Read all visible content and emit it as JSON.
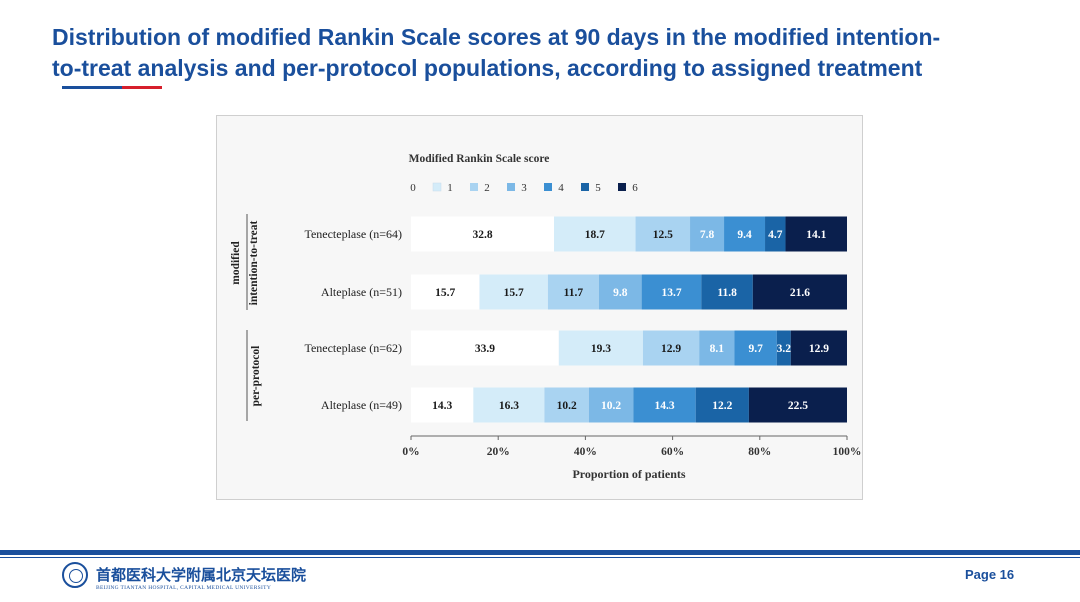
{
  "slide": {
    "title_line1": "Distribution of modified Rankin Scale scores at 90 days in the modified intention-",
    "title_line2": "to-treat analysis and per-protocol populations, according to assigned treatment",
    "page": "Page 16"
  },
  "footer": {
    "hospital_cn": "首都医科大学附属北京天坛医院",
    "hospital_en": "BEIJING TIANTAN HOSPITAL, CAPITAL MEDICAL UNIVERSITY"
  },
  "chart_data": {
    "type": "bar",
    "orientation": "horizontal",
    "stacked": true,
    "title": "Modified Rankin Scale score",
    "xlabel": "Proportion of patients",
    "xlim": [
      0,
      100
    ],
    "xticks": [
      "0%",
      "20%",
      "40%",
      "60%",
      "80%",
      "100%"
    ],
    "legend_position": "top",
    "colors": [
      "#ffffff",
      "#d4ecf9",
      "#a9d3f1",
      "#7cb8e6",
      "#3b8fd2",
      "#1a64a6",
      "#0a1f4d"
    ],
    "label_colors": [
      "#1a1a1a",
      "#1a1a1a",
      "#1a1a1a",
      "#ffffff",
      "#ffffff",
      "#ffffff",
      "#ffffff"
    ],
    "series": [
      {
        "name": "0",
        "values": [
          32.8,
          15.7,
          33.9,
          14.3
        ]
      },
      {
        "name": "1",
        "values": [
          18.7,
          15.7,
          19.3,
          16.3
        ]
      },
      {
        "name": "2",
        "values": [
          12.5,
          11.7,
          12.9,
          10.2
        ]
      },
      {
        "name": "3",
        "values": [
          7.8,
          9.8,
          8.1,
          10.2
        ]
      },
      {
        "name": "4",
        "values": [
          9.4,
          13.7,
          9.7,
          14.3
        ]
      },
      {
        "name": "5",
        "values": [
          4.7,
          11.8,
          3.2,
          12.2
        ]
      },
      {
        "name": "6",
        "values": [
          14.1,
          21.6,
          12.9,
          22.5
        ]
      }
    ],
    "rows": [
      {
        "label": "Tenecteplase (n=64)",
        "group": 0
      },
      {
        "label": "Alteplase  (n=51)",
        "group": 0
      },
      {
        "label": "Tenecteplase (n=62)",
        "group": 1
      },
      {
        "label": "Alteplase  (n=49)",
        "group": 1
      }
    ],
    "groups": [
      {
        "label_lines": [
          "modified",
          "intention-to-treat"
        ]
      },
      {
        "label_lines": [
          "per-protocol"
        ]
      }
    ]
  }
}
